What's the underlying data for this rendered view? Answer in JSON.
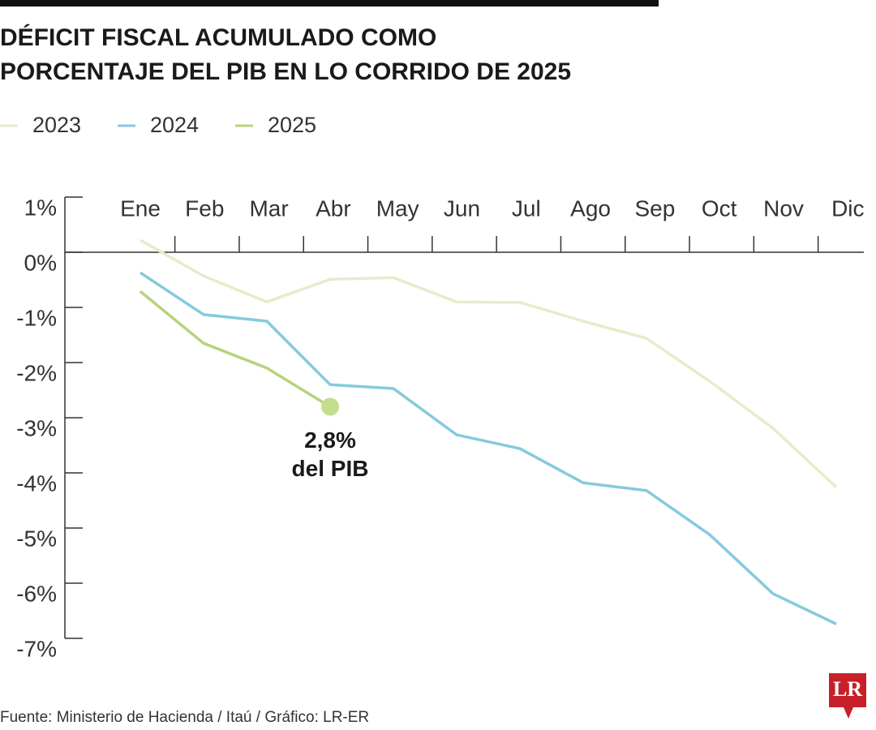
{
  "chart_data": {
    "type": "line",
    "title": [
      "DÉFICIT FISCAL ACUMULADO COMO",
      "PORCENTAJE DEL PIB EN LO CORRIDO DE 2025"
    ],
    "categories": [
      "Ene",
      "Feb",
      "Mar",
      "Abr",
      "May",
      "Jun",
      "Jul",
      "Ago",
      "Sep",
      "Oct",
      "Nov",
      "Dic"
    ],
    "series": [
      {
        "name": "2023",
        "color": "#e6eccb",
        "values": [
          0.22,
          -0.43,
          -0.9,
          -0.49,
          -0.46,
          -0.9,
          -0.91,
          -1.25,
          -1.56,
          -2.34,
          -3.19,
          -4.26
        ]
      },
      {
        "name": "2024",
        "color": "#85cadd",
        "values": [
          -0.37,
          -1.13,
          -1.25,
          -2.4,
          -2.47,
          -3.31,
          -3.56,
          -4.18,
          -4.32,
          -5.12,
          -6.19,
          -6.74
        ]
      },
      {
        "name": "2025",
        "color": "#b7d27c",
        "values": [
          -0.71,
          -1.65,
          -2.1,
          -2.8,
          null,
          null,
          null,
          null,
          null,
          null,
          null,
          null
        ]
      }
    ],
    "ylim": [
      -7,
      1
    ],
    "yticks": [
      {
        "value": 1,
        "label": "1%"
      },
      {
        "value": 0,
        "label": "0%"
      },
      {
        "value": -1,
        "label": "-1%"
      },
      {
        "value": -2,
        "label": "-2%"
      },
      {
        "value": -3,
        "label": "-3%"
      },
      {
        "value": -4,
        "label": "-4%"
      },
      {
        "value": -5,
        "label": "-5%"
      },
      {
        "value": -6,
        "label": "-6%"
      },
      {
        "value": -7,
        "label": "-7%"
      }
    ],
    "annotation": {
      "lines": [
        "2,8%",
        "del PIB"
      ],
      "marker_color": "#c5dd8e"
    },
    "source": "Fuente: Ministerio de Hacienda / Itaú / Gráfico: LR-ER",
    "logo": "LR"
  }
}
